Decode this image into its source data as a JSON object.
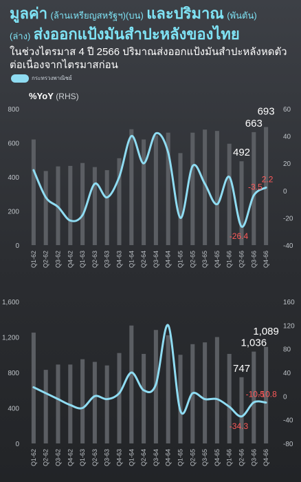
{
  "title": {
    "part1_big": "มูลค่า",
    "part1_small": "(ล้านเหรียญสหรัฐฯ)(บน)",
    "part2_big": "และปริมาณ",
    "part2_small": "(พันตัน)",
    "part3_small": "(ล่าง)",
    "part3_big": "ส่งออกแป้งมันสำปะหลังของไทย"
  },
  "subtitle": "ในช่วงไตรมาส 4 ปี 2566 ปริมาณส่งออกแป้งมันสำปะหลังหดตัวต่อเนื่องจากไตรมาสก่อน",
  "legend": {
    "source": "กระทรวงพาณิชย์",
    "yoy_label": "%YoY",
    "rhs_label": "(RHS)"
  },
  "colors": {
    "bar": "#5b5e63",
    "line": "#8fdcf2",
    "highlight": "#ff5a5a",
    "axis_text": "#bfc4c9"
  },
  "chart_data": [
    {
      "type": "bar",
      "name": "value",
      "categories": [
        "Q1-62",
        "Q2-62",
        "Q3-62",
        "Q4-62",
        "Q1-63",
        "Q2-63",
        "Q3-63",
        "Q4-63",
        "Q1-64",
        "Q2-64",
        "Q3-64",
        "Q4-64",
        "Q1-65",
        "Q2-65",
        "Q3-65",
        "Q4-65",
        "Q1-66",
        "Q2-66",
        "Q3-66",
        "Q4-66"
      ],
      "values": [
        620,
        435,
        462,
        465,
        482,
        458,
        440,
        510,
        680,
        620,
        645,
        660,
        540,
        660,
        678,
        670,
        595,
        492,
        663,
        693
      ],
      "yoy": [
        15,
        -5,
        -12,
        -22,
        -18,
        5,
        -5,
        10,
        40,
        20,
        42,
        28,
        -20,
        18,
        5,
        -10,
        10,
        -26.4,
        -3.5,
        2.2
      ],
      "ylim": [
        0,
        800
      ],
      "yticks": [
        "0",
        "200",
        "400",
        "600",
        "800"
      ],
      "y2lim": [
        -40,
        60
      ],
      "y2ticks": [
        "-40",
        "-20",
        "0",
        "20",
        "40",
        "60"
      ],
      "annotations": {
        "bar_labels": [
          {
            "index": 17,
            "text": "492"
          },
          {
            "index": 18,
            "text": "663"
          },
          {
            "index": 19,
            "text": "693"
          }
        ],
        "yoy_labels": [
          {
            "index": 17,
            "text": "-26.4"
          },
          {
            "index": 18,
            "text": "-3.5"
          },
          {
            "index": 19,
            "text": "2.2"
          }
        ]
      }
    },
    {
      "type": "bar",
      "name": "volume",
      "categories": [
        "Q1-62",
        "Q2-62",
        "Q3-62",
        "Q4-62",
        "Q1-63",
        "Q2-63",
        "Q3-63",
        "Q4-63",
        "Q1-64",
        "Q2-64",
        "Q3-64",
        "Q4-64",
        "Q1-65",
        "Q2-65",
        "Q3-65",
        "Q4-65",
        "Q1-66",
        "Q2-66",
        "Q3-66",
        "Q4-66"
      ],
      "values": [
        1250,
        830,
        890,
        890,
        950,
        920,
        880,
        1020,
        1330,
        1010,
        1280,
        1220,
        1000,
        1120,
        1140,
        1200,
        1010,
        747,
        1036,
        1089
      ],
      "yoy": [
        15,
        5,
        -5,
        -15,
        -20,
        0,
        -5,
        5,
        40,
        10,
        20,
        120,
        -25,
        5,
        -5,
        -5,
        -18,
        -34.3,
        -10.5,
        -10.8
      ],
      "ylim": [
        0,
        1600
      ],
      "yticks": [
        "0",
        "400",
        "800",
        "1,200",
        "1,600"
      ],
      "y2lim": [
        -80,
        160
      ],
      "y2ticks": [
        "-80",
        "-40",
        "0",
        "40",
        "80",
        "120",
        "160"
      ],
      "annotations": {
        "bar_labels": [
          {
            "index": 17,
            "text": "747"
          },
          {
            "index": 18,
            "text": "1,036"
          },
          {
            "index": 19,
            "text": "1,089"
          }
        ],
        "yoy_labels": [
          {
            "index": 17,
            "text": "-34.3"
          },
          {
            "index": 18,
            "text": "-10.5"
          },
          {
            "index": 19,
            "text": "-10.8"
          }
        ]
      }
    }
  ]
}
